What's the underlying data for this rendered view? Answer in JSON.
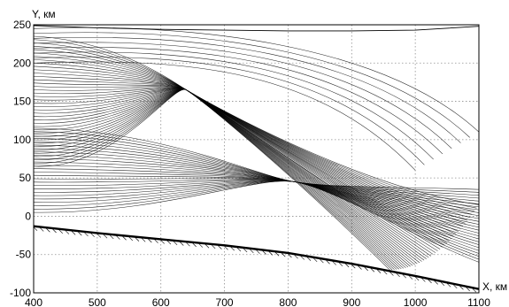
{
  "chart_data": {
    "type": "line",
    "xlabel": "X, км",
    "ylabel": "Y, км",
    "xlim": [
      400,
      1100
    ],
    "ylim": [
      -100,
      250
    ],
    "xticks": [
      400,
      500,
      600,
      700,
      800,
      900,
      1000,
      1100
    ],
    "yticks": [
      -100,
      -50,
      0,
      50,
      100,
      150,
      200,
      250
    ],
    "grid": true,
    "legend": "none",
    "series": [
      {
        "role": "ground-boundary",
        "x": [
          400,
          500,
          600,
          700,
          800,
          900,
          1000,
          1100
        ],
        "y": [
          -13,
          -22,
          -30,
          -38,
          -48,
          -62,
          -78,
          -95
        ]
      },
      {
        "role": "upper-boundary",
        "x": [
          400,
          500,
          600,
          700,
          800,
          900,
          1000,
          1100
        ],
        "y": [
          249,
          246,
          244,
          243,
          242,
          242,
          243,
          248
        ]
      },
      {
        "role": "ray-family-focused",
        "count": 40,
        "start_x": 400,
        "start_y_range": [
          65,
          235
        ],
        "focus_x": 640,
        "focus_y": 165,
        "end_x_range": [
          960,
          1100
        ],
        "end_y_range": [
          -70,
          15
        ]
      },
      {
        "role": "ray-family-secondary",
        "count": 26,
        "start_x": 400,
        "start_y_range": [
          5,
          115
        ],
        "focus_x": 810,
        "focus_y": 45,
        "end_y_range": [
          -60,
          35
        ]
      },
      {
        "role": "ray-family-upper-arcs",
        "count": 8,
        "start_x": 400,
        "start_y_range": [
          200,
          245
        ],
        "end_x_range": [
          1000,
          1100
        ],
        "end_y_range": [
          60,
          110
        ]
      }
    ]
  }
}
